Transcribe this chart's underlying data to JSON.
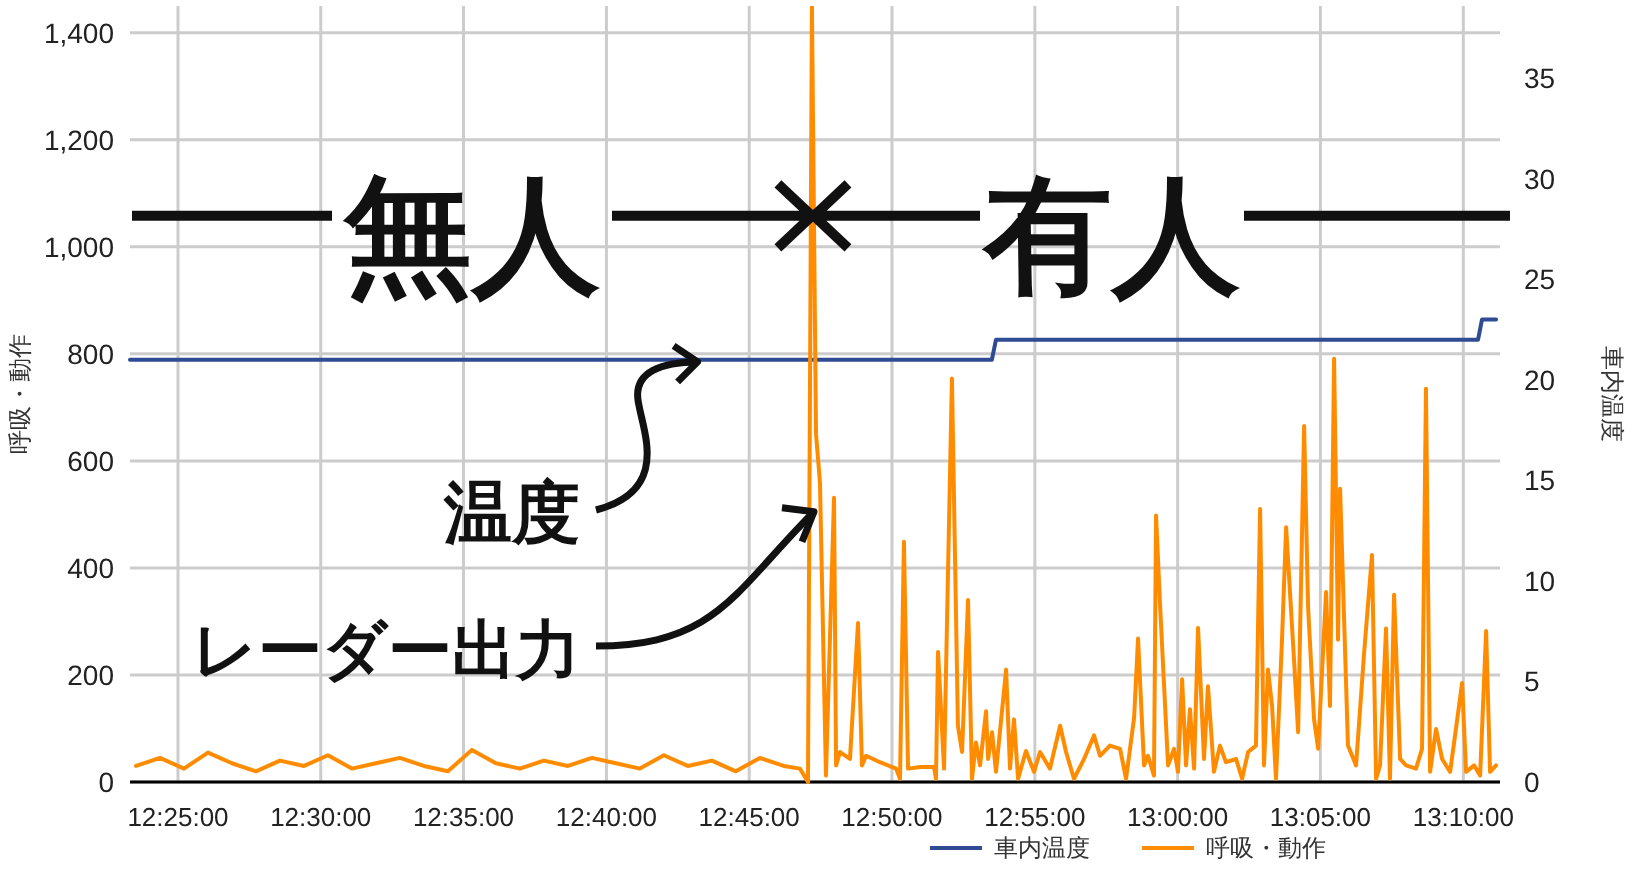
{
  "chart_data": {
    "type": "line",
    "ylabel": "呼吸・動作",
    "y2label": "車内温度",
    "xlim": [
      12.3887,
      13.1881
    ],
    "xticks": [
      {
        "value": 12.4167,
        "label": "12:25:00"
      },
      {
        "value": 12.5,
        "label": "12:30:00"
      },
      {
        "value": 12.5833,
        "label": "12:35:00"
      },
      {
        "value": 12.6667,
        "label": "12:40:00"
      },
      {
        "value": 12.75,
        "label": "12:45:00"
      },
      {
        "value": 12.8333,
        "label": "12:50:00"
      },
      {
        "value": 12.9167,
        "label": "12:55:00"
      },
      {
        "value": 13.0,
        "label": "13:00:00"
      },
      {
        "value": 13.0833,
        "label": "13:05:00"
      },
      {
        "value": 13.1667,
        "label": "13:10:00"
      }
    ],
    "ylim": [
      0,
      1450
    ],
    "yticks": [
      0,
      200,
      400,
      600,
      800,
      {
        "value": 1000,
        "label": "1,000"
      },
      {
        "value": 1200,
        "label": "1,200"
      },
      {
        "value": 1400,
        "label": "1,400"
      }
    ],
    "y2lim": [
      0,
      38.6
    ],
    "y2ticks": [
      0,
      5,
      10,
      15,
      20,
      25,
      30,
      35
    ],
    "grid": true,
    "legend": "bottom",
    "series": [
      {
        "name": "車内温度",
        "color": "#2f4b93",
        "axis": "y2",
        "x": [
          12.3887,
          12.8916,
          12.894,
          13.1753,
          13.1776,
          13.1858
        ],
        "values": [
          21,
          21,
          22,
          22,
          23,
          23
        ]
      },
      {
        "name": "呼吸・動作",
        "color": "#ff8c00",
        "x": [
          12.3922,
          12.4062,
          12.4202,
          12.4342,
          12.4482,
          12.4622,
          12.4762,
          12.4902,
          12.5042,
          12.5182,
          12.5322,
          12.5462,
          12.5602,
          12.5742,
          12.5882,
          12.6022,
          12.6162,
          12.6302,
          12.6442,
          12.6582,
          12.6722,
          12.6862,
          12.7002,
          12.7142,
          12.7282,
          12.7422,
          12.7562,
          12.7702,
          12.7796,
          12.7843,
          12.7866,
          12.789,
          12.7913,
          12.7948,
          12.7995,
          12.8007,
          12.803,
          12.8088,
          12.8135,
          12.8158,
          12.8182,
          12.8263,
          12.8357,
          12.838,
          12.8403,
          12.8427,
          12.8497,
          12.8578,
          12.859,
          12.8602,
          12.8637,
          12.8683,
          12.8718,
          12.8742,
          12.8777,
          12.88,
          12.8823,
          12.8847,
          12.8882,
          12.8894,
          12.8917,
          12.894,
          12.8999,
          12.9022,
          12.9045,
          12.9069,
          12.9115,
          12.9162,
          12.9197,
          12.9255,
          12.9314,
          12.9349,
          12.9395,
          12.9454,
          12.9512,
          12.9547,
          12.9605,
          12.9664,
          12.9699,
          12.9746,
          12.9769,
          12.9804,
          12.9827,
          12.9862,
          12.9874,
          12.9897,
          12.9921,
          12.9944,
          12.9979,
          13.0002,
          13.0026,
          13.0049,
          13.0072,
          13.0096,
          13.0119,
          13.0154,
          13.0177,
          13.0212,
          13.0247,
          13.0282,
          13.0341,
          13.0376,
          13.0411,
          13.0457,
          13.0481,
          13.0504,
          13.0527,
          13.0551,
          13.0574,
          13.0609,
          13.0633,
          13.0679,
          13.0703,
          13.0738,
          13.0761,
          13.0796,
          13.082,
          13.0866,
          13.0889,
          13.0913,
          13.0936,
          13.0948,
          13.0994,
          13.1041,
          13.1088,
          13.1134,
          13.1158,
          13.1181,
          13.1216,
          13.1239,
          13.1263,
          13.1298,
          13.1333,
          13.1391,
          13.1426,
          13.1449,
          13.1473,
          13.1508,
          13.1543,
          13.159,
          13.166,
          13.1683,
          13.173,
          13.1765,
          13.18,
          13.1823,
          13.1858
        ],
        "values": [
          30,
          45,
          25,
          55,
          35,
          20,
          40,
          30,
          50,
          25,
          35,
          45,
          30,
          20,
          60,
          35,
          25,
          40,
          30,
          45,
          35,
          25,
          50,
          30,
          40,
          20,
          45,
          30,
          25,
          0,
          1450,
          650,
          560,
          12,
          531,
          31,
          56,
          43,
          297,
          31,
          49,
          37,
          25,
          6,
          449,
          25,
          28,
          28,
          6,
          243,
          25,
          754,
          105,
          56,
          340,
          6,
          74,
          31,
          132,
          43,
          93,
          19,
          210,
          25,
          117,
          6,
          58,
          19,
          56,
          25,
          105,
          56,
          6,
          43,
          87,
          49,
          68,
          62,
          6,
          120,
          268,
          31,
          49,
          12,
          498,
          334,
          179,
          31,
          62,
          19,
          192,
          31,
          136,
          25,
          288,
          43,
          179,
          19,
          68,
          37,
          43,
          6,
          56,
          68,
          510,
          31,
          210,
          142,
          6,
          266,
          476,
          229,
          93,
          665,
          327,
          117,
          62,
          355,
          142,
          791,
          266,
          548,
          68,
          31,
          241,
          424,
          6,
          31,
          287,
          6,
          350,
          43,
          31,
          25,
          62,
          735,
          19,
          99,
          43,
          19,
          185,
          19,
          31,
          12,
          282,
          19,
          31
        ]
      }
    ],
    "annotations": [
      {
        "text": "無人",
        "x": 12.7866,
        "y": 1058
      },
      {
        "text": "有人",
        "x": 12.7878,
        "y": 1058
      },
      {
        "text": "温度",
        "x": 12.7199,
        "y": 785
      },
      {
        "text": "レーダー出力",
        "x": 12.7878,
        "y": 505
      }
    ]
  }
}
